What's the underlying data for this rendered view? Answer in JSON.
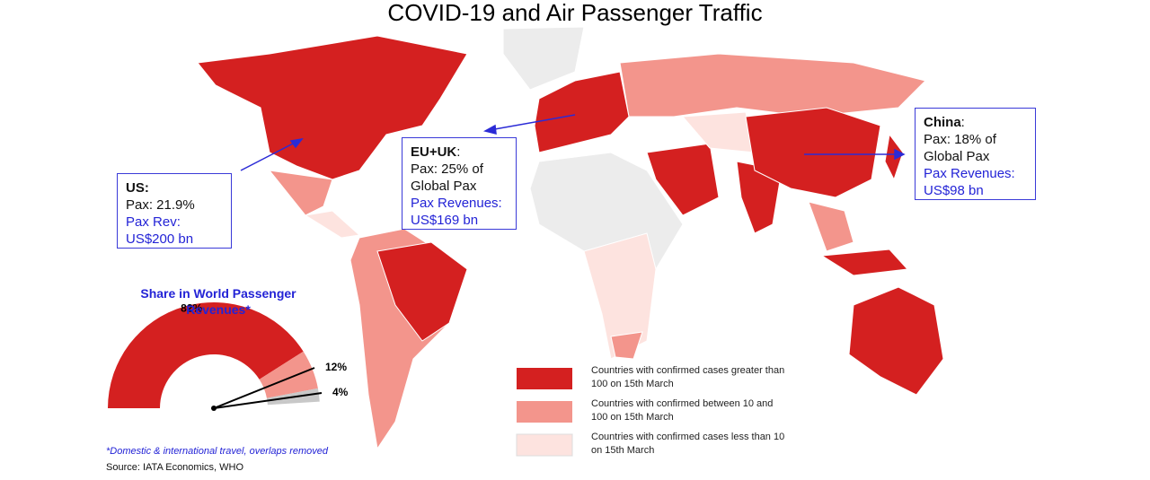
{
  "header": {
    "title": "COVID-19 and Air Passenger Traffic"
  },
  "callouts": {
    "us": {
      "name": "US:",
      "lines": [
        "Pax: 21.9%",
        "Pax Rev:",
        "US$200 bn"
      ]
    },
    "eu": {
      "name": "EU+UK",
      "lines": [
        "Pax: 25% of",
        "Global Pax",
        "Pax Revenues:",
        "US$169 bn"
      ]
    },
    "china": {
      "name": "China",
      "lines": [
        "Pax: 18% of",
        "Global Pax",
        "Pax Revenues:",
        "US$98 bn"
      ]
    }
  },
  "share_chart": {
    "type": "pie",
    "title": "Share in World Passenger Revenues*",
    "values": [
      82,
      12,
      4
    ],
    "value_labels": [
      "82%",
      "12%",
      "4%"
    ],
    "colors": [
      "#d42020",
      "#f3958c",
      "#c8c8c8"
    ]
  },
  "legend": [
    {
      "label": "Countries with confirmed cases greater than 100 on 15th March",
      "color": "#d42020"
    },
    {
      "label": "Countries with confirmed between 10 and 100 on 15th March",
      "color": "#f3958c"
    },
    {
      "label": "Countries with confirmed cases less than 10 on 15th March",
      "color": "#fde3df"
    }
  ],
  "footnote": "*Domestic & international travel, overlaps removed",
  "source": "Source: IATA Economics, WHO"
}
